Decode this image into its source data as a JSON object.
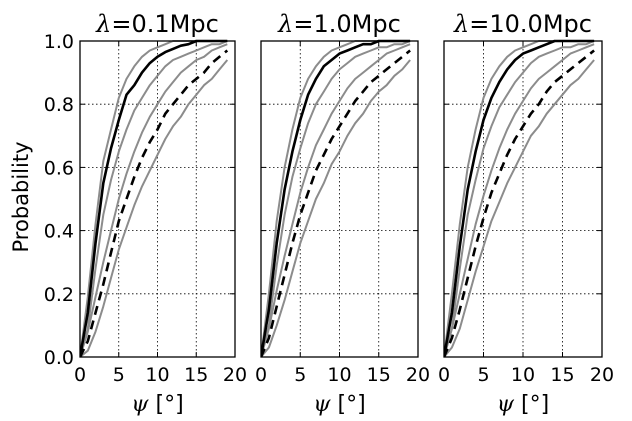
{
  "chart_data": [
    {
      "type": "line",
      "title": "λ=0.1Mpc",
      "lambda_label": "λ",
      "lambda_value": "=0.1Mpc",
      "xlabel_symbol": "ψ",
      "xlabel_unit": " [°]",
      "ylabel": "Probability",
      "xlim": [
        0,
        20
      ],
      "ylim": [
        0,
        1
      ],
      "xticks": [
        "0",
        "5",
        "10",
        "15",
        "20"
      ],
      "yticks": [
        "0.0",
        "0.2",
        "0.4",
        "0.6",
        "0.8",
        "1.0"
      ],
      "x": [
        0,
        1,
        2,
        3,
        4,
        5,
        6,
        7,
        8,
        9,
        10,
        11,
        12,
        13,
        14,
        15,
        16,
        17,
        18,
        19
      ],
      "series": [
        {
          "name": "solid",
          "style": "solid",
          "values": [
            0.0,
            0.14,
            0.36,
            0.55,
            0.66,
            0.75,
            0.83,
            0.86,
            0.9,
            0.93,
            0.95,
            0.965,
            0.975,
            0.985,
            0.99,
            1.0,
            1.0,
            1.0,
            1.0,
            1.0
          ]
        },
        {
          "name": "solid-upper",
          "style": "band",
          "values": [
            0.0,
            0.19,
            0.42,
            0.62,
            0.72,
            0.82,
            0.88,
            0.92,
            0.95,
            0.97,
            0.98,
            0.99,
            1.0,
            1.0,
            1.0,
            1.0,
            1.0,
            1.0,
            1.0,
            1.0
          ]
        },
        {
          "name": "solid-lower",
          "style": "band",
          "values": [
            0.0,
            0.09,
            0.28,
            0.45,
            0.56,
            0.65,
            0.72,
            0.78,
            0.82,
            0.86,
            0.89,
            0.92,
            0.94,
            0.95,
            0.96,
            0.97,
            0.98,
            0.99,
            0.99,
            1.0
          ]
        },
        {
          "name": "dashed",
          "style": "dashed",
          "values": [
            0.0,
            0.05,
            0.14,
            0.23,
            0.33,
            0.43,
            0.5,
            0.57,
            0.63,
            0.68,
            0.72,
            0.77,
            0.8,
            0.83,
            0.86,
            0.88,
            0.9,
            0.93,
            0.95,
            0.97
          ]
        },
        {
          "name": "dashed-upper",
          "style": "band",
          "values": [
            0.0,
            0.08,
            0.19,
            0.3,
            0.4,
            0.5,
            0.58,
            0.65,
            0.71,
            0.76,
            0.8,
            0.84,
            0.87,
            0.9,
            0.92,
            0.94,
            0.95,
            0.97,
            0.98,
            0.99
          ]
        },
        {
          "name": "dashed-lower",
          "style": "band",
          "values": [
            0.0,
            0.02,
            0.08,
            0.16,
            0.25,
            0.34,
            0.41,
            0.48,
            0.54,
            0.59,
            0.64,
            0.69,
            0.73,
            0.76,
            0.8,
            0.83,
            0.86,
            0.88,
            0.91,
            0.94
          ]
        }
      ]
    },
    {
      "type": "line",
      "title": "λ=1.0Mpc",
      "lambda_label": "λ",
      "lambda_value": "=1.0Mpc",
      "xlabel_symbol": "ψ",
      "xlabel_unit": " [°]",
      "xlim": [
        0,
        20
      ],
      "ylim": [
        0,
        1
      ],
      "xticks": [
        "0",
        "5",
        "10",
        "15",
        "20"
      ],
      "x": [
        0,
        1,
        2,
        3,
        4,
        5,
        6,
        7,
        8,
        9,
        10,
        11,
        12,
        13,
        14,
        15,
        16,
        17,
        18,
        19
      ],
      "series": [
        {
          "name": "solid",
          "style": "solid",
          "values": [
            0.0,
            0.15,
            0.36,
            0.53,
            0.65,
            0.75,
            0.83,
            0.88,
            0.92,
            0.94,
            0.96,
            0.97,
            0.98,
            0.99,
            0.99,
            1.0,
            1.0,
            1.0,
            1.0,
            1.0
          ]
        },
        {
          "name": "solid-upper",
          "style": "band",
          "values": [
            0.0,
            0.2,
            0.43,
            0.6,
            0.72,
            0.82,
            0.88,
            0.92,
            0.95,
            0.97,
            0.98,
            0.99,
            1.0,
            1.0,
            1.0,
            1.0,
            1.0,
            1.0,
            1.0,
            1.0
          ]
        },
        {
          "name": "solid-lower",
          "style": "band",
          "values": [
            0.0,
            0.1,
            0.29,
            0.45,
            0.57,
            0.66,
            0.74,
            0.8,
            0.84,
            0.88,
            0.91,
            0.93,
            0.95,
            0.96,
            0.97,
            0.98,
            0.98,
            0.99,
            0.99,
            1.0
          ]
        },
        {
          "name": "dashed",
          "style": "dashed",
          "values": [
            0.0,
            0.06,
            0.16,
            0.26,
            0.36,
            0.45,
            0.52,
            0.59,
            0.64,
            0.69,
            0.73,
            0.77,
            0.81,
            0.84,
            0.87,
            0.89,
            0.91,
            0.93,
            0.95,
            0.97
          ]
        },
        {
          "name": "dashed-upper",
          "style": "band",
          "values": [
            0.0,
            0.09,
            0.21,
            0.32,
            0.42,
            0.52,
            0.6,
            0.67,
            0.72,
            0.77,
            0.81,
            0.85,
            0.88,
            0.9,
            0.92,
            0.94,
            0.96,
            0.97,
            0.98,
            0.99
          ]
        },
        {
          "name": "dashed-lower",
          "style": "band",
          "values": [
            0.0,
            0.03,
            0.1,
            0.18,
            0.27,
            0.36,
            0.43,
            0.5,
            0.55,
            0.61,
            0.65,
            0.7,
            0.74,
            0.77,
            0.81,
            0.84,
            0.86,
            0.89,
            0.91,
            0.94
          ]
        }
      ]
    },
    {
      "type": "line",
      "title": "λ=10.0Mpc",
      "lambda_label": "λ",
      "lambda_value": "=10.0Mpc",
      "xlabel_symbol": "ψ",
      "xlabel_unit": " [°]",
      "xlim": [
        0,
        20
      ],
      "ylim": [
        0,
        1
      ],
      "xticks": [
        "0",
        "5",
        "10",
        "15",
        "20"
      ],
      "x": [
        0,
        1,
        2,
        3,
        4,
        5,
        6,
        7,
        8,
        9,
        10,
        11,
        12,
        13,
        14,
        15,
        16,
        17,
        18,
        19
      ],
      "series": [
        {
          "name": "solid",
          "style": "solid",
          "values": [
            0.0,
            0.14,
            0.35,
            0.53,
            0.65,
            0.75,
            0.82,
            0.87,
            0.91,
            0.94,
            0.96,
            0.97,
            0.98,
            0.99,
            1.0,
            1.0,
            1.0,
            1.0,
            1.0,
            1.0
          ]
        },
        {
          "name": "solid-upper",
          "style": "band",
          "values": [
            0.0,
            0.2,
            0.42,
            0.6,
            0.72,
            0.82,
            0.88,
            0.92,
            0.95,
            0.97,
            0.98,
            0.99,
            1.0,
            1.0,
            1.0,
            1.0,
            1.0,
            1.0,
            1.0,
            1.0
          ]
        },
        {
          "name": "solid-lower",
          "style": "band",
          "values": [
            0.0,
            0.09,
            0.28,
            0.45,
            0.56,
            0.66,
            0.73,
            0.79,
            0.83,
            0.87,
            0.9,
            0.93,
            0.95,
            0.96,
            0.97,
            0.98,
            0.98,
            0.99,
            0.99,
            1.0
          ]
        },
        {
          "name": "dashed",
          "style": "dashed",
          "values": [
            0.0,
            0.06,
            0.15,
            0.25,
            0.35,
            0.44,
            0.52,
            0.58,
            0.64,
            0.69,
            0.73,
            0.77,
            0.8,
            0.84,
            0.87,
            0.89,
            0.91,
            0.93,
            0.95,
            0.97
          ]
        },
        {
          "name": "dashed-upper",
          "style": "band",
          "values": [
            0.0,
            0.09,
            0.2,
            0.31,
            0.42,
            0.51,
            0.59,
            0.66,
            0.72,
            0.77,
            0.81,
            0.85,
            0.88,
            0.9,
            0.92,
            0.94,
            0.96,
            0.97,
            0.98,
            0.99
          ]
        },
        {
          "name": "dashed-lower",
          "style": "band",
          "values": [
            0.0,
            0.03,
            0.09,
            0.18,
            0.27,
            0.35,
            0.43,
            0.49,
            0.55,
            0.6,
            0.65,
            0.7,
            0.73,
            0.77,
            0.8,
            0.83,
            0.86,
            0.88,
            0.91,
            0.94
          ]
        }
      ]
    }
  ]
}
